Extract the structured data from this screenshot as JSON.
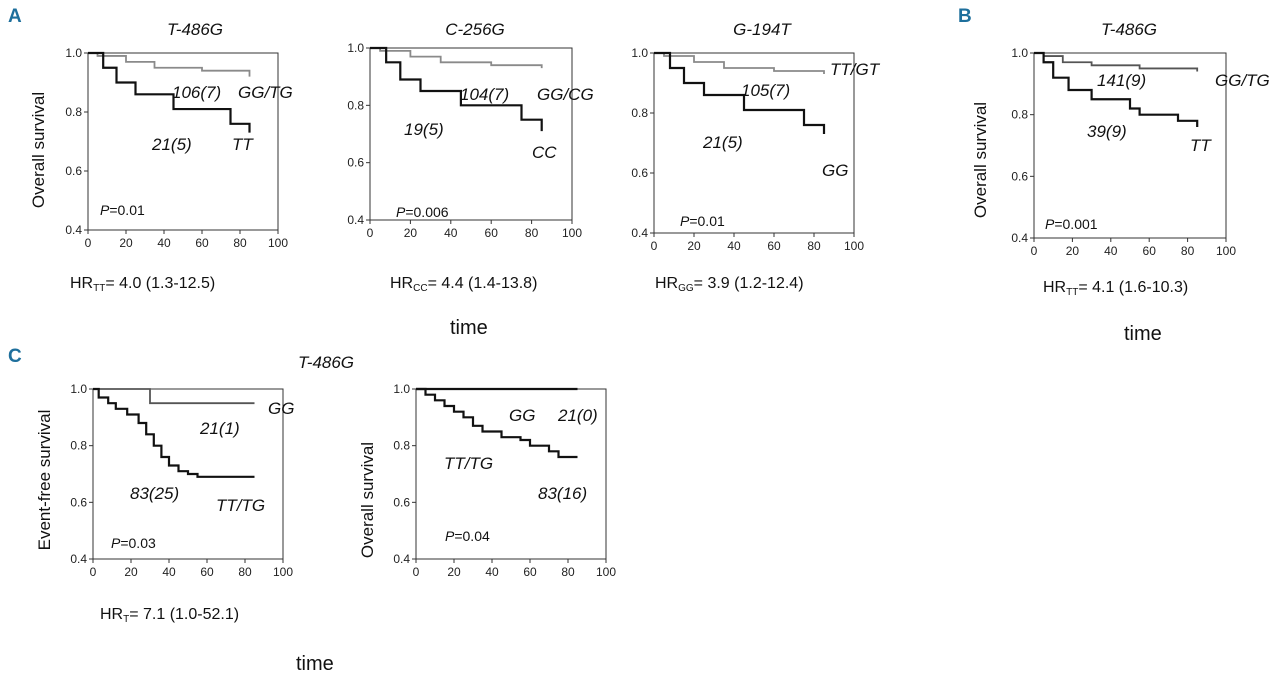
{
  "figure": {
    "panel_labels": [
      "A",
      "B",
      "C"
    ],
    "time_label": "time",
    "x_ticks": [
      "0",
      "20",
      "40",
      "60",
      "80",
      "100"
    ],
    "y_ticks": [
      "1.0",
      "0.8",
      "0.6",
      "0.4"
    ]
  },
  "chart_data": [
    {
      "type": "line",
      "title": "T-486G",
      "ylabel": "Overall survival",
      "xlim": [
        0,
        100
      ],
      "ylim": [
        0.4,
        1.0
      ],
      "p_prefix": "P",
      "p_value": "=0.01",
      "hr_main": "HR",
      "hr_sub": "TT",
      "hr_value": "= 4.0 (1.3-12.5)",
      "series": [
        {
          "name": "GG/TG",
          "count_label": "106(7)",
          "color": "#8a8a8a",
          "x": [
            0,
            5,
            20,
            35,
            60,
            85
          ],
          "y": [
            1.0,
            0.99,
            0.97,
            0.95,
            0.94,
            0.92
          ]
        },
        {
          "name": "TT",
          "count_label": "21(5)",
          "color": "#111111",
          "x": [
            0,
            8,
            15,
            25,
            45,
            75,
            85
          ],
          "y": [
            1.0,
            0.95,
            0.9,
            0.86,
            0.81,
            0.76,
            0.73
          ]
        }
      ]
    },
    {
      "type": "line",
      "title": "C-256G",
      "ylabel": "",
      "xlim": [
        0,
        100
      ],
      "ylim": [
        0.4,
        1.0
      ],
      "p_prefix": "P",
      "p_value": "=0.006",
      "hr_main": "HR",
      "hr_sub": "CC",
      "hr_value": "= 4.4 (1.4-13.8)",
      "series": [
        {
          "name": "GG/CG",
          "count_label": "104(7)",
          "color": "#8a8a8a",
          "x": [
            0,
            5,
            20,
            35,
            60,
            85
          ],
          "y": [
            1.0,
            0.99,
            0.97,
            0.95,
            0.94,
            0.93
          ]
        },
        {
          "name": "CC",
          "count_label": "19(5)",
          "color": "#111111",
          "x": [
            0,
            8,
            15,
            25,
            45,
            75,
            85
          ],
          "y": [
            1.0,
            0.95,
            0.89,
            0.85,
            0.8,
            0.75,
            0.71
          ]
        }
      ]
    },
    {
      "type": "line",
      "title": "G-194T",
      "ylabel": "",
      "xlim": [
        0,
        100
      ],
      "ylim": [
        0.4,
        1.0
      ],
      "p_prefix": "P",
      "p_value": "=0.01",
      "hr_main": "HR",
      "hr_sub": "GG",
      "hr_value": "= 3.9 (1.2-12.4)",
      "series": [
        {
          "name": "TT/GT",
          "count_label": "105(7)",
          "color": "#8a8a8a",
          "x": [
            0,
            5,
            20,
            35,
            60,
            85
          ],
          "y": [
            1.0,
            0.99,
            0.97,
            0.95,
            0.94,
            0.93
          ]
        },
        {
          "name": "GG",
          "count_label": "21(5)",
          "color": "#111111",
          "x": [
            0,
            8,
            15,
            25,
            45,
            75,
            85
          ],
          "y": [
            1.0,
            0.95,
            0.9,
            0.86,
            0.81,
            0.76,
            0.73
          ]
        }
      ]
    },
    {
      "type": "line",
      "title": "T-486G",
      "ylabel": "Overall survival",
      "xlim": [
        0,
        100
      ],
      "ylim": [
        0.4,
        1.0
      ],
      "p_prefix": "P",
      "p_value": "=0.001",
      "hr_main": "HR",
      "hr_sub": "TT",
      "hr_value": "= 4.1 (1.6-10.3)",
      "series": [
        {
          "name": "GG/TG",
          "count_label": "141(9)",
          "color": "#555555",
          "x": [
            0,
            5,
            15,
            30,
            55,
            85
          ],
          "y": [
            1.0,
            0.99,
            0.97,
            0.96,
            0.95,
            0.94
          ]
        },
        {
          "name": "TT",
          "count_label": "39(9)",
          "color": "#111111",
          "x": [
            0,
            5,
            10,
            18,
            30,
            50,
            55,
            75,
            85
          ],
          "y": [
            1.0,
            0.97,
            0.92,
            0.88,
            0.85,
            0.82,
            0.8,
            0.78,
            0.76
          ]
        }
      ]
    },
    {
      "type": "line",
      "title": "T-486G",
      "ylabel": "Event-free survival",
      "xlim": [
        0,
        100
      ],
      "ylim": [
        0.4,
        1.0
      ],
      "p_prefix": "P",
      "p_value": "=0.03",
      "hr_main": "HR",
      "hr_sub": "T",
      "hr_value": "= 7.1 (1.0-52.1)",
      "series": [
        {
          "name": "GG",
          "count_label": "21(1)",
          "color": "#555555",
          "x": [
            0,
            30,
            85
          ],
          "y": [
            1.0,
            0.95,
            0.95
          ]
        },
        {
          "name": "TT/TG",
          "count_label": "83(25)",
          "color": "#111111",
          "x": [
            0,
            3,
            8,
            12,
            18,
            24,
            28,
            32,
            36,
            40,
            45,
            50,
            55,
            85
          ],
          "y": [
            1.0,
            0.97,
            0.95,
            0.93,
            0.91,
            0.88,
            0.84,
            0.8,
            0.76,
            0.73,
            0.71,
            0.7,
            0.69,
            0.69
          ]
        }
      ]
    },
    {
      "type": "line",
      "title": "",
      "ylabel": "Overall survival",
      "xlim": [
        0,
        100
      ],
      "ylim": [
        0.4,
        1.0
      ],
      "p_prefix": "P",
      "p_value": "=0.04",
      "hr_main": "",
      "hr_sub": "",
      "hr_value": "",
      "series": [
        {
          "name": "GG",
          "count_label": "21(0)",
          "color": "#111111",
          "x": [
            0,
            85
          ],
          "y": [
            1.0,
            1.0
          ]
        },
        {
          "name": "TT/TG",
          "count_label": "83(16)",
          "color": "#111111",
          "x": [
            0,
            5,
            10,
            15,
            20,
            25,
            30,
            35,
            45,
            55,
            60,
            70,
            75,
            85
          ],
          "y": [
            1.0,
            0.98,
            0.96,
            0.94,
            0.92,
            0.9,
            0.87,
            0.85,
            0.83,
            0.82,
            0.8,
            0.78,
            0.76,
            0.76
          ]
        }
      ]
    }
  ]
}
